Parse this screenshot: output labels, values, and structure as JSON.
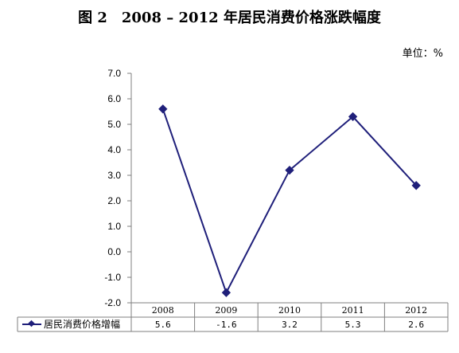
{
  "chart_data": {
    "type": "line",
    "title": "图 2　2008 – 2012 年居民消费价格涨跌幅度",
    "unit": "单位：%",
    "categories": [
      "2008",
      "2009",
      "2010",
      "2011",
      "2012"
    ],
    "series": [
      {
        "name": "居民消费价格增幅",
        "values": [
          5.6,
          -1.6,
          3.2,
          5.3,
          2.6
        ],
        "value_labels": [
          "5.6",
          "-1.6",
          "3.2",
          "5.3",
          "2.6"
        ],
        "color": "#1f1f7a"
      }
    ],
    "ylim": [
      -2.0,
      7.0
    ],
    "yticks": [
      "7.0",
      "6.0",
      "5.0",
      "4.0",
      "3.0",
      "2.0",
      "1.0",
      "0.0",
      "-1.0",
      "-2.0"
    ],
    "grid": false,
    "legend": "bottom-left data table",
    "xlabel": "",
    "ylabel": ""
  }
}
